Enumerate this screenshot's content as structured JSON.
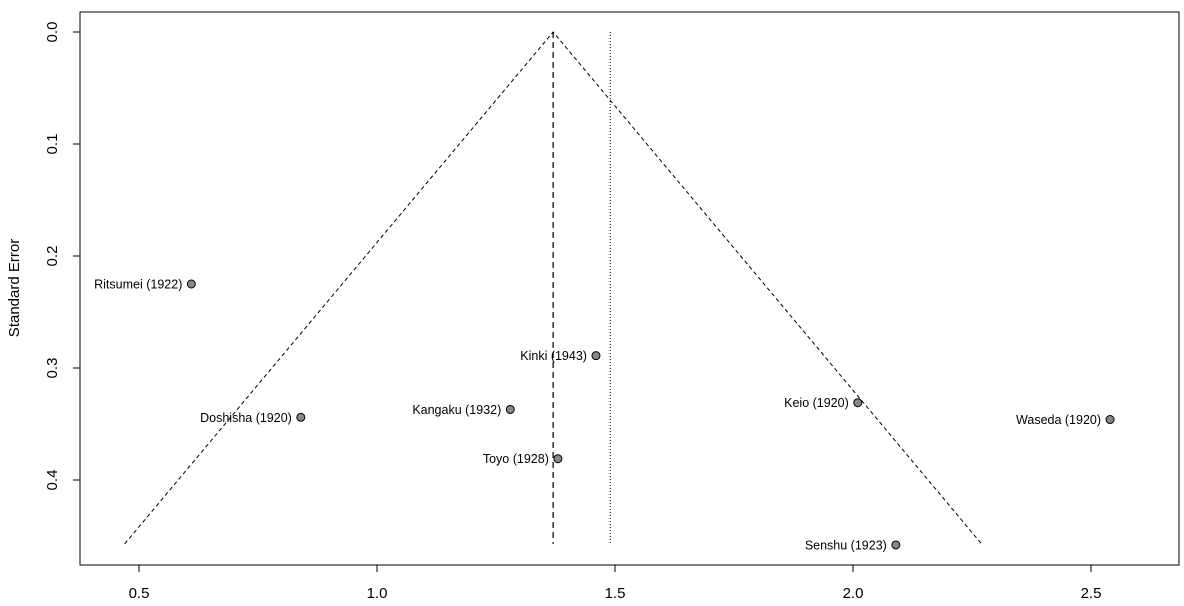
{
  "chart_data": {
    "type": "scatter",
    "title": "",
    "xlabel": "",
    "ylabel": "Standard Error",
    "xlim": [
      0.4,
      2.7
    ],
    "ylim": [
      0.0,
      0.47
    ],
    "y_reversed": true,
    "x_ticks": [
      0.5,
      1.0,
      1.5,
      2.0,
      2.5
    ],
    "x_tick_labels": [
      "0.5",
      "1.0",
      "1.5",
      "2.0",
      "2.5"
    ],
    "y_ticks": [
      0.0,
      0.1,
      0.2,
      0.3,
      0.4
    ],
    "y_tick_labels": [
      "0.0",
      "0.1",
      "0.2",
      "0.3",
      "0.4"
    ],
    "grid": false,
    "legend": "none",
    "pooled_estimate": 1.37,
    "reference_line": 1.49,
    "funnel": {
      "apex": [
        1.37,
        0.0
      ],
      "bottom_left": [
        0.47,
        0.457
      ],
      "bottom_right": [
        2.27,
        0.457
      ]
    },
    "points": [
      {
        "label": "Ritsumei (1922)",
        "x": 0.61,
        "y": 0.225
      },
      {
        "label": "Kinki (1943)",
        "x": 1.46,
        "y": 0.289
      },
      {
        "label": "Doshisha (1920)",
        "x": 0.84,
        "y": 0.344
      },
      {
        "label": "Kangaku (1932)",
        "x": 1.28,
        "y": 0.337
      },
      {
        "label": "Keio (1920)",
        "x": 2.01,
        "y": 0.331
      },
      {
        "label": "Waseda (1920)",
        "x": 2.54,
        "y": 0.346
      },
      {
        "label": "Toyo (1928)",
        "x": 1.38,
        "y": 0.381
      },
      {
        "label": "Senshu (1923)",
        "x": 2.09,
        "y": 0.458
      }
    ],
    "colors": {
      "point_fill": "#888888",
      "point_stroke": "#000000",
      "line": "#000000"
    }
  }
}
